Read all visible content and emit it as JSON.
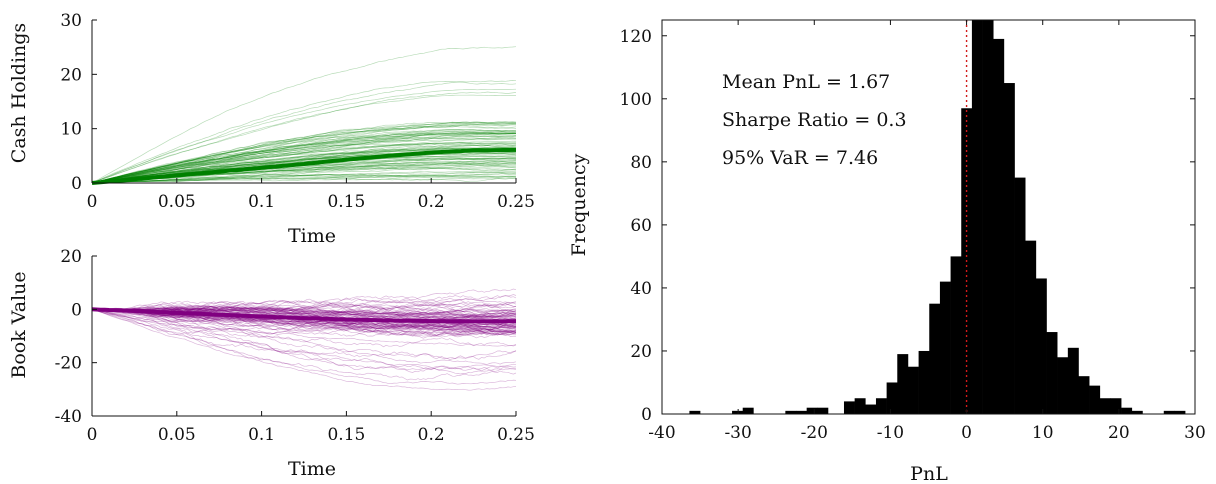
{
  "chart_data": [
    {
      "type": "line",
      "xlabel": "Time",
      "ylabel": "Cash Holdings",
      "xlim": [
        0,
        0.25
      ],
      "ylim": [
        0,
        30
      ],
      "xticks": [
        "0",
        "0.05",
        "0.1",
        "0.15",
        "0.2",
        "0.25"
      ],
      "yticks": [
        "0",
        "10",
        "20",
        "30"
      ],
      "grid": false,
      "color": "#008000",
      "mean_path": {
        "x": [
          0,
          0.025,
          0.05,
          0.075,
          0.1,
          0.125,
          0.15,
          0.175,
          0.2,
          0.225,
          0.25
        ],
        "y": [
          0,
          0.7,
          1.4,
          2.1,
          2.8,
          3.5,
          4.3,
          5.0,
          5.6,
          6.0,
          6.1
        ]
      },
      "simulated_paths": 100
    },
    {
      "type": "line",
      "xlabel": "Time",
      "ylabel": "Book Value",
      "xlim": [
        0,
        0.25
      ],
      "ylim": [
        -40,
        20
      ],
      "xticks": [
        "0",
        "0.05",
        "0.1",
        "0.15",
        "0.2",
        "0.25"
      ],
      "yticks": [
        "-40",
        "-20",
        "0",
        "20"
      ],
      "grid": false,
      "color": "#800080",
      "mean_path": {
        "x": [
          0,
          0.025,
          0.05,
          0.075,
          0.1,
          0.125,
          0.15,
          0.175,
          0.2,
          0.225,
          0.25
        ],
        "y": [
          0,
          -0.6,
          -1.3,
          -2.0,
          -2.7,
          -3.3,
          -3.8,
          -4.2,
          -4.4,
          -4.5,
          -4.5
        ]
      },
      "simulated_paths": 100
    },
    {
      "type": "bar",
      "subtype": "histogram",
      "xlabel": "PnL",
      "ylabel": "Frequency",
      "xlim": [
        -40,
        30
      ],
      "ylim": [
        0,
        125
      ],
      "xticks": [
        "-40",
        "-30",
        "-20",
        "-10",
        "0",
        "10",
        "20",
        "30"
      ],
      "yticks": [
        "0",
        "20",
        "40",
        "60",
        "80",
        "100",
        "120"
      ],
      "grid": false,
      "bin_width": 1.4,
      "bins": [
        {
          "x": -35.7,
          "count": 1
        },
        {
          "x": -30.1,
          "count": 1
        },
        {
          "x": -28.7,
          "count": 2
        },
        {
          "x": -23.1,
          "count": 1
        },
        {
          "x": -21.7,
          "count": 1
        },
        {
          "x": -20.3,
          "count": 2
        },
        {
          "x": -18.9,
          "count": 2
        },
        {
          "x": -15.4,
          "count": 4
        },
        {
          "x": -14.0,
          "count": 5
        },
        {
          "x": -12.6,
          "count": 3
        },
        {
          "x": -11.2,
          "count": 5
        },
        {
          "x": -9.8,
          "count": 10
        },
        {
          "x": -8.4,
          "count": 19
        },
        {
          "x": -7.0,
          "count": 15
        },
        {
          "x": -5.6,
          "count": 20
        },
        {
          "x": -4.2,
          "count": 35
        },
        {
          "x": -2.8,
          "count": 42
        },
        {
          "x": -1.4,
          "count": 50
        },
        {
          "x": 0.0,
          "count": 97
        },
        {
          "x": 1.4,
          "count": 125
        },
        {
          "x": 2.8,
          "count": 125
        },
        {
          "x": 4.2,
          "count": 119
        },
        {
          "x": 5.6,
          "count": 105
        },
        {
          "x": 7.0,
          "count": 75
        },
        {
          "x": 8.4,
          "count": 55
        },
        {
          "x": 9.8,
          "count": 43
        },
        {
          "x": 11.2,
          "count": 26
        },
        {
          "x": 12.6,
          "count": 18
        },
        {
          "x": 14.0,
          "count": 21
        },
        {
          "x": 15.4,
          "count": 12
        },
        {
          "x": 16.8,
          "count": 9
        },
        {
          "x": 18.2,
          "count": 5
        },
        {
          "x": 19.6,
          "count": 5
        },
        {
          "x": 21.0,
          "count": 2
        },
        {
          "x": 22.4,
          "count": 1
        },
        {
          "x": 26.6,
          "count": 1
        },
        {
          "x": 28.0,
          "count": 1
        }
      ],
      "reference_line": {
        "x": 0,
        "color": "#d11b1b",
        "style": "dotted"
      },
      "annotations": [
        "Mean PnL = 1.67",
        "Sharpe Ratio = 0.3",
        "95% VaR = 7.46"
      ]
    }
  ]
}
